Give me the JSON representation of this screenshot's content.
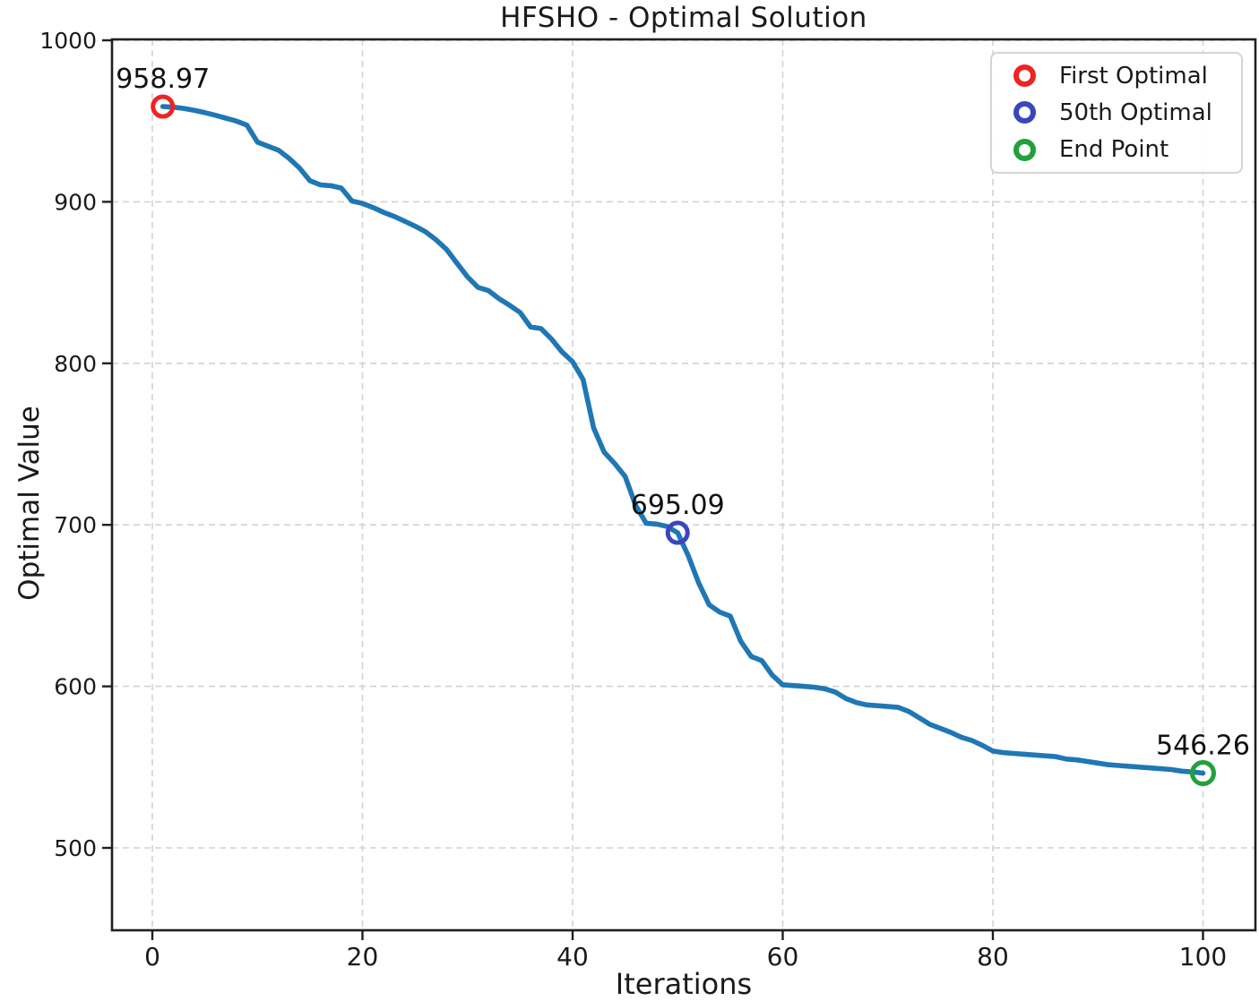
{
  "chart_data": {
    "type": "line",
    "title": "HFSHO - Optimal Solution",
    "xlabel": "Iterations",
    "ylabel": "Optimal Value",
    "grid": true,
    "grid_style": "dashed",
    "legend_position": "top-right",
    "x_ticks": [
      0,
      20,
      40,
      60,
      80,
      100
    ],
    "y_ticks": [
      500,
      600,
      700,
      800,
      900,
      1000
    ],
    "xlim": [
      -4,
      105
    ],
    "ylim": [
      447,
      1001
    ],
    "line_color": "#1f77b4",
    "x_start_iteration": 1,
    "series": [
      {
        "name": "Optimal Value per Iteration",
        "values": [
          958.97,
          958.6,
          957.8,
          956.6,
          955.2,
          953.6,
          951.8,
          950.0,
          947.5,
          937.0,
          934.5,
          932.0,
          927.0,
          921.0,
          913.0,
          910.5,
          910.0,
          908.5,
          900.5,
          899.0,
          896.5,
          893.5,
          891.0,
          888.0,
          885.0,
          881.5,
          876.5,
          870.5,
          862.0,
          853.5,
          847.0,
          845.0,
          840.0,
          836.0,
          831.5,
          822.5,
          821.5,
          815.0,
          807.0,
          801.0,
          790.0,
          760.0,
          745.0,
          738.0,
          730.0,
          712.0,
          701.0,
          700.5,
          699.0,
          695.09,
          681.0,
          664.0,
          650.5,
          646.0,
          643.5,
          628.0,
          618.5,
          616.0,
          607.0,
          601.0,
          600.5,
          600.0,
          599.5,
          598.5,
          596.5,
          592.5,
          590.0,
          588.5,
          588.0,
          587.5,
          587.0,
          584.5,
          580.5,
          576.5,
          574.0,
          571.5,
          568.5,
          566.5,
          563.5,
          560.0,
          559.0,
          558.5,
          558.0,
          557.5,
          557.0,
          556.5,
          555.0,
          554.5,
          553.5,
          552.5,
          551.5,
          551.0,
          550.5,
          550.0,
          549.5,
          549.0,
          548.5,
          547.5,
          547.0,
          546.26
        ]
      }
    ],
    "markers": [
      {
        "legend_label": "First Optimal",
        "iteration": 1,
        "value": 958.97,
        "color": "#ee2324",
        "radius": 11
      },
      {
        "legend_label": "50th Optimal",
        "iteration": 50,
        "value": 695.09,
        "color": "#3b46bd",
        "radius": 11
      },
      {
        "legend_label": "End Point",
        "iteration": 100,
        "value": 546.26,
        "color": "#22a03c",
        "radius": 12
      }
    ],
    "annotations": [
      {
        "text": "958.97",
        "iteration": 1,
        "value": 958.97
      },
      {
        "text": "695.09",
        "iteration": 50,
        "value": 695.09
      },
      {
        "text": "546.26",
        "iteration": 100,
        "value": 546.26
      }
    ]
  }
}
